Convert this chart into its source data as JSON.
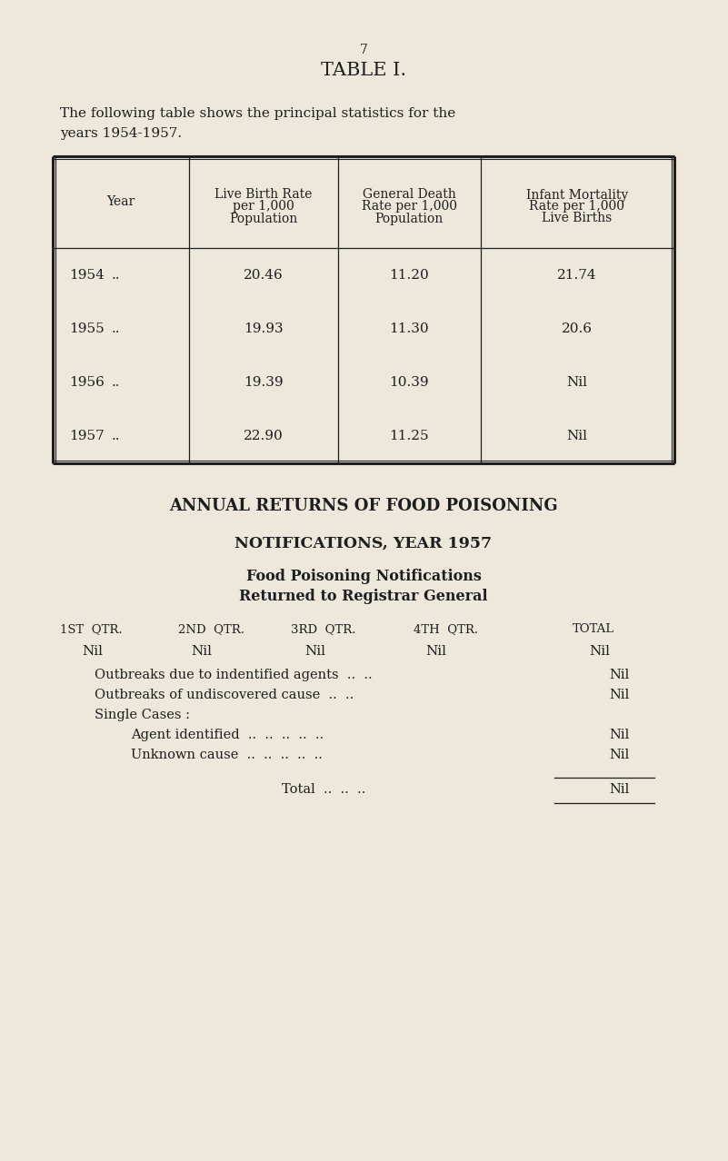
{
  "bg_color": "#ede8db",
  "text_color": "#1e1e1e",
  "page_number": "7",
  "title": "TABLE I.",
  "intro1": "The following table shows the principal statistics for the",
  "intro2": "years 1954-1957.",
  "t1_col_headers": [
    "Year",
    "Live Birth Rate\nper 1,000\nPopulation",
    "General Death\nRate per 1,000\nPopulation",
    "Infant Mortality\nRate per 1,000\nLive Births"
  ],
  "t1_rows": [
    [
      "1954",
      "..",
      "20.46",
      "11.20",
      "21.74"
    ],
    [
      "1955",
      "..",
      "19.93",
      "11.30",
      "20.6"
    ],
    [
      "1956",
      "..",
      "19.39",
      "10.39",
      "Nil"
    ],
    [
      "1957",
      "..",
      "22.90",
      "11.25",
      "Nil"
    ]
  ],
  "sec1": "ANNUAL RETURNS OF FOOD POISONING",
  "sec2": "NOTIFICATIONS, YEAR 1957",
  "sec3": "Food Poisoning Notifications",
  "sec4": "Returned to Registrar General",
  "qtr_row": [
    "1ST  QTR.",
    "2ND  QTR.",
    "3RD  QTR.",
    "4TH  QTR.",
    "TOTAL"
  ],
  "nil_row": [
    "Nil",
    "Nil",
    "Nil",
    "Nil",
    "Nil"
  ],
  "food_items": [
    {
      "indent": 0.13,
      "label": "Outbreaks due to indentified agents  ..  ..",
      "total": "Nil"
    },
    {
      "indent": 0.13,
      "label": "Outbreaks of undiscovered cause  ..  ..",
      "total": "Nil"
    },
    {
      "indent": 0.13,
      "label": "Single Cases :",
      "total": ""
    },
    {
      "indent": 0.18,
      "label": "Agent identified  ..  ..  ..  ..  ..",
      "total": "Nil"
    },
    {
      "indent": 0.18,
      "label": "Unknown cause  ..  ..  ..  ..  ..",
      "total": "Nil"
    }
  ],
  "total_label": "Total  ..  ..  ..",
  "total_value": "Nil"
}
